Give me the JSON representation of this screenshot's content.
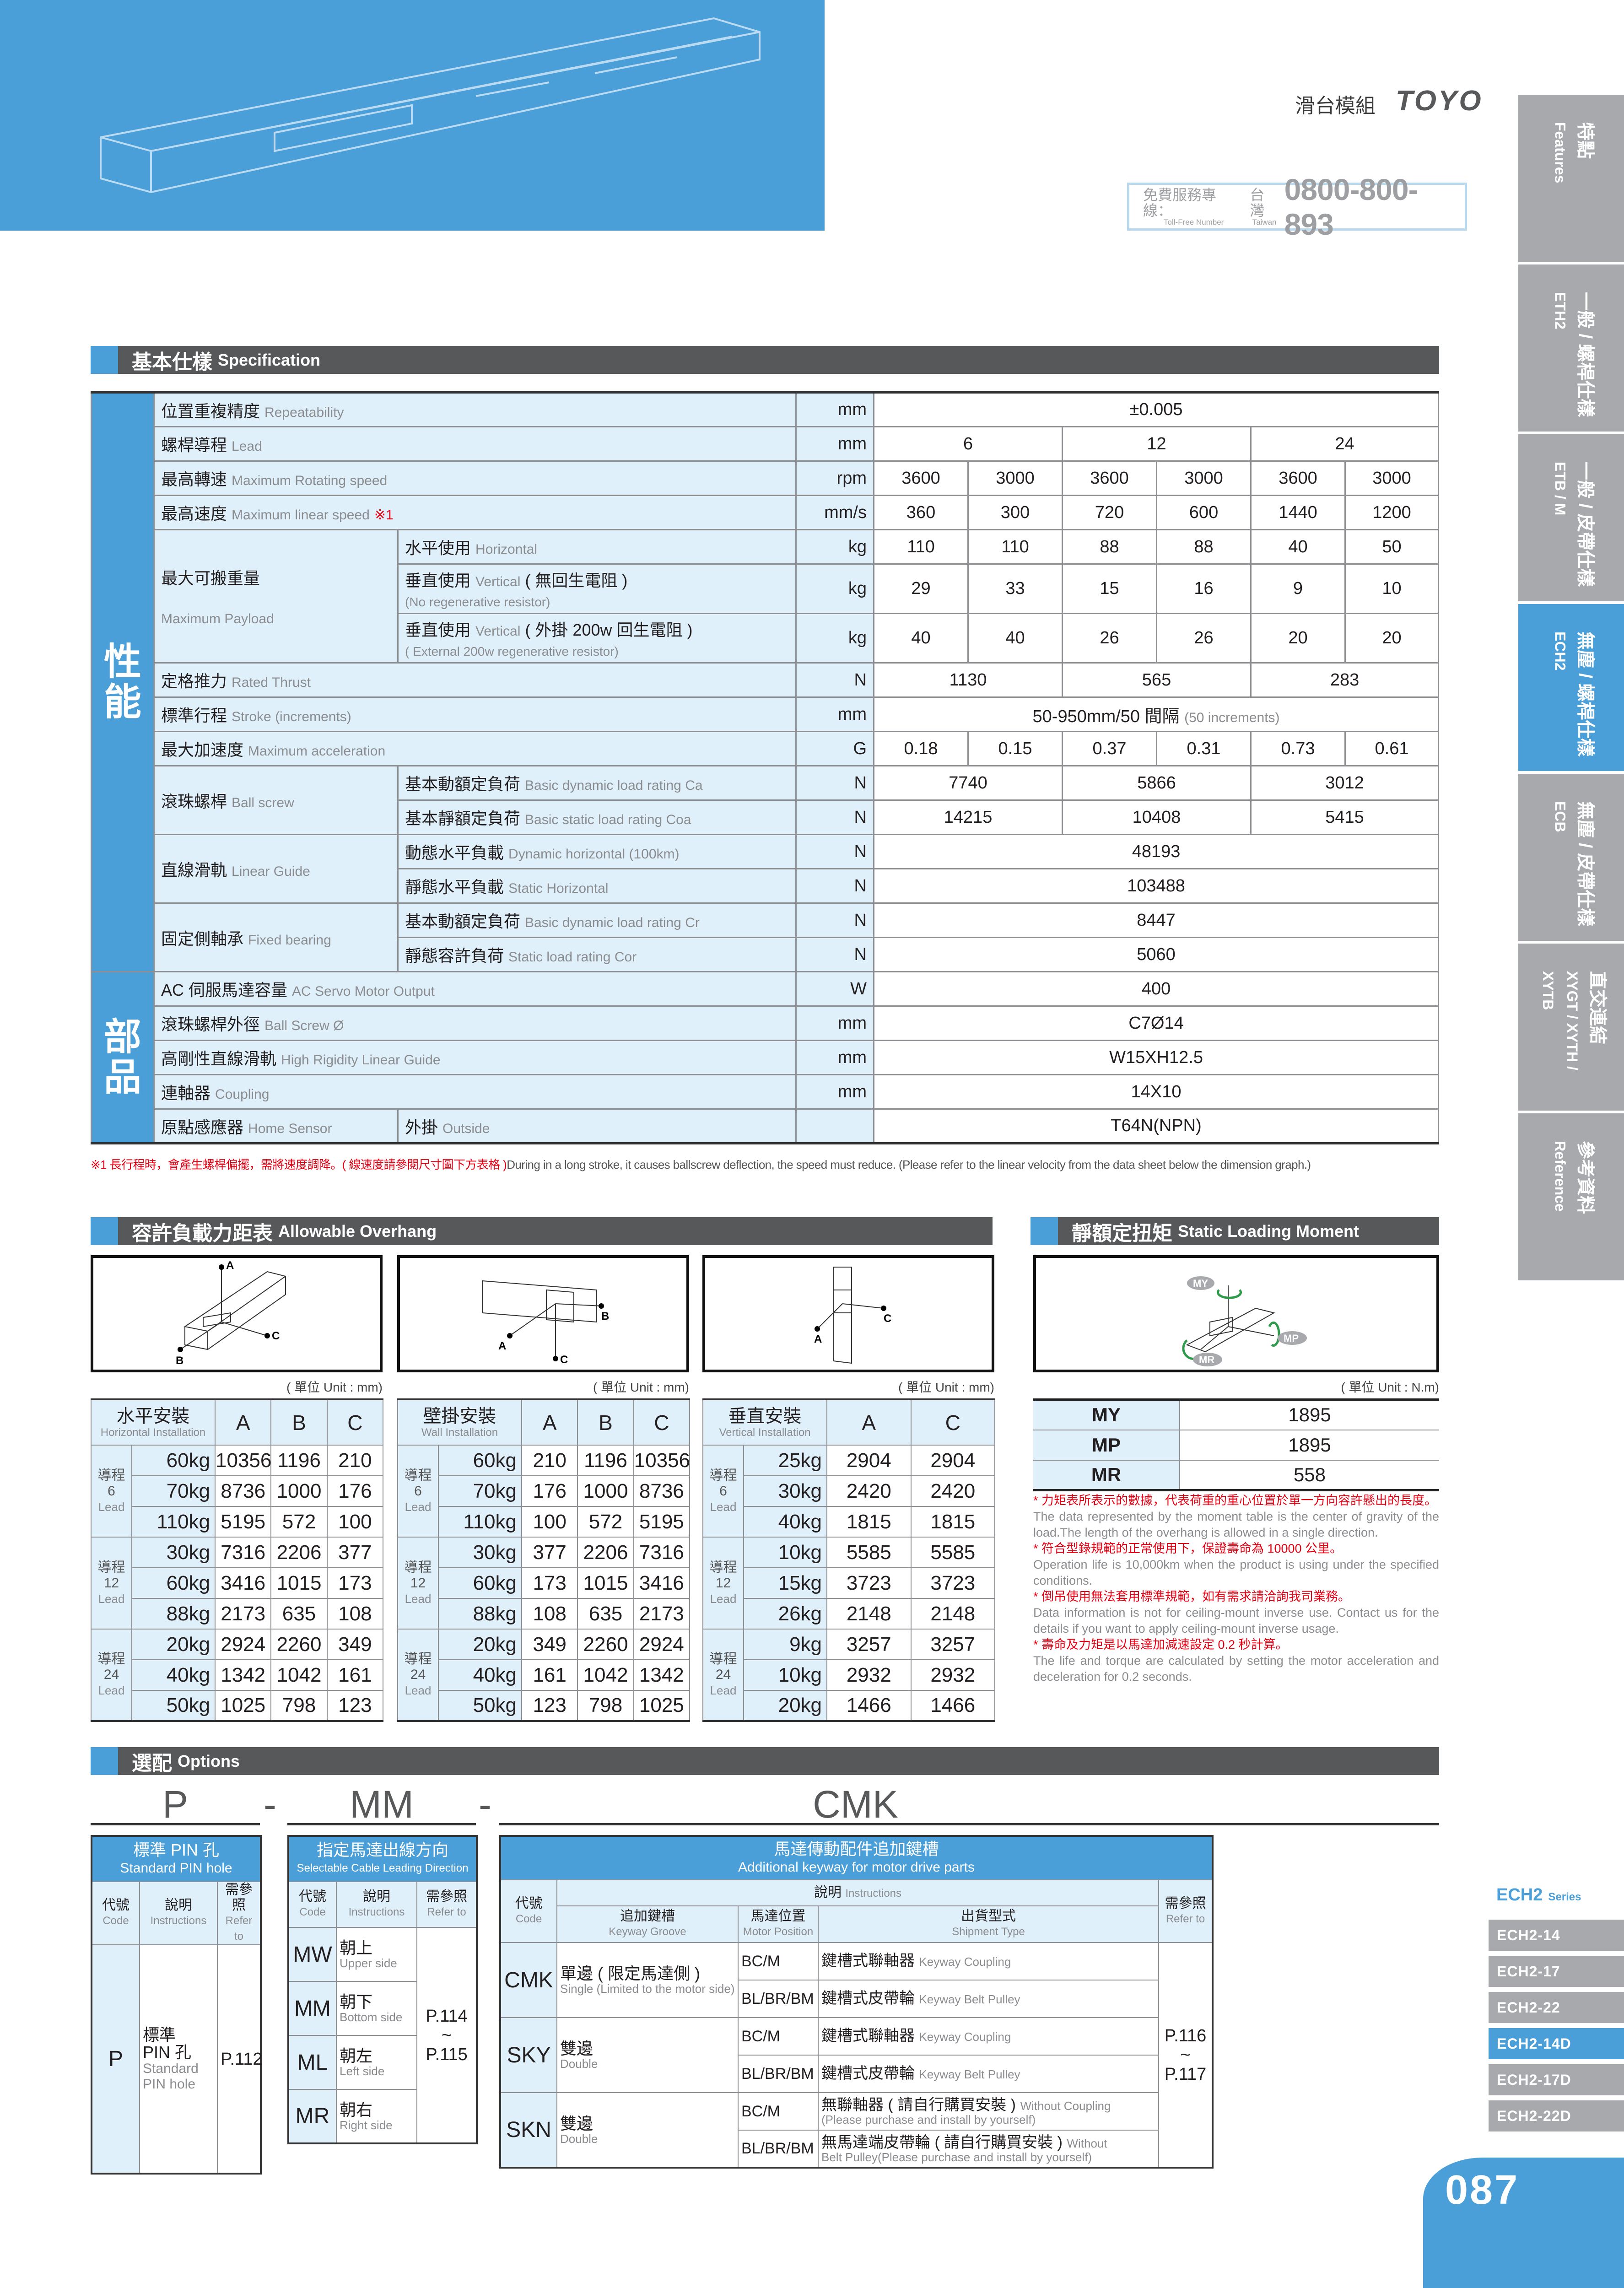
{
  "header": {
    "category": "滑台模組",
    "brand": "TOYO",
    "tollfree": {
      "label_zh": "免費服務專線：",
      "label_en": "Toll-Free Number",
      "region_zh": "台灣",
      "region_en": "Taiwan",
      "number": "0800-800-893"
    }
  },
  "side_tabs": [
    {
      "zh": "特點",
      "en": "Features",
      "active": false
    },
    {
      "zh": "一般 / 螺桿仕樣",
      "en": "ETH2",
      "active": false
    },
    {
      "zh": "一般 / 皮帶仕樣",
      "en": "ETB / M",
      "active": false
    },
    {
      "zh": "無塵 / 螺桿仕樣",
      "en": "ECH2",
      "active": true
    },
    {
      "zh": "無塵 / 皮帶仕樣",
      "en": "ECB",
      "active": false
    },
    {
      "zh": "直交連結",
      "en": "XYGT / XYTH / XYTB",
      "active": false
    },
    {
      "zh": "參考資料",
      "en": "Reference",
      "active": false
    }
  ],
  "spec": {
    "title_zh": "基本仕樣",
    "title_en": "Specification",
    "sections": [
      {
        "label": "性能",
        "items": [
          {
            "zh": "位置重複精度",
            "en": "Repeatability",
            "unit": "mm",
            "values": [
              "±0.005"
            ]
          },
          {
            "zh": "螺桿導程",
            "en": "Lead",
            "unit": "mm",
            "values": [
              "6",
              "12",
              "24"
            ]
          },
          {
            "zh": "最高轉速",
            "en": "Maximum Rotating speed",
            "unit": "rpm",
            "values": [
              "3600",
              "3000",
              "3600",
              "3000",
              "3600",
              "3000"
            ]
          },
          {
            "zh": "最高速度",
            "en": "Maximum linear speed",
            "note": "※1",
            "unit": "mm/s",
            "values": [
              "360",
              "300",
              "720",
              "600",
              "1440",
              "1200"
            ]
          },
          {
            "zh": "最大可搬重量",
            "en": "Maximum Payload",
            "sub": [
              {
                "zh": "水平使用",
                "en": "Horizontal",
                "unit": "kg",
                "values": [
                  "110",
                  "110",
                  "88",
                  "88",
                  "40",
                  "50"
                ]
              },
              {
                "zh": "垂直使用",
                "en": "Vertical",
                "zh2": "( 無回生電阻 )",
                "line2": "(No regenerative resistor)",
                "unit": "kg",
                "values": [
                  "29",
                  "33",
                  "15",
                  "16",
                  "9",
                  "10"
                ]
              },
              {
                "zh": "垂直使用",
                "en": "Vertical",
                "zh2": "( 外掛 200w 回生電阻 )",
                "line2": "( External 200w regenerative resistor)",
                "unit": "kg",
                "values": [
                  "40",
                  "40",
                  "26",
                  "26",
                  "20",
                  "20"
                ]
              }
            ]
          },
          {
            "zh": "定格推力",
            "en": "Rated Thrust",
            "unit": "N",
            "values": [
              "1130",
              "565",
              "283"
            ]
          },
          {
            "zh": "標準行程",
            "en": "Stroke (increments)",
            "unit": "mm",
            "values": [
              "50-950mm/50 間隔"
            ],
            "value_note": "(50 increments)"
          },
          {
            "zh": "最大加速度",
            "en": "Maximum acceleration",
            "unit": "G",
            "values": [
              "0.18",
              "0.15",
              "0.37",
              "0.31",
              "0.73",
              "0.61"
            ]
          },
          {
            "zh": "滾珠螺桿",
            "en": "Ball screw",
            "sub": [
              {
                "zh": "基本動額定負荷",
                "en": "Basic dynamic load rating Ca",
                "unit": "N",
                "values": [
                  "7740",
                  "5866",
                  "3012"
                ]
              },
              {
                "zh": "基本靜額定負荷",
                "en": "Basic static load rating Coa",
                "unit": "N",
                "values": [
                  "14215",
                  "10408",
                  "5415"
                ]
              }
            ]
          },
          {
            "zh": "直線滑軌",
            "en": "Linear Guide",
            "sub": [
              {
                "zh": "動態水平負載",
                "en": "Dynamic horizontal (100km)",
                "unit": "N",
                "values": [
                  "48193"
                ]
              },
              {
                "zh": "靜態水平負載",
                "en": "Static Horizontal",
                "unit": "N",
                "values": [
                  "103488"
                ]
              }
            ]
          },
          {
            "zh": "固定側軸承",
            "en": "Fixed bearing",
            "sub": [
              {
                "zh": "基本動額定負荷",
                "en": "Basic dynamic load rating Cr",
                "unit": "N",
                "values": [
                  "8447"
                ]
              },
              {
                "zh": "靜態容許負荷",
                "en": "Static load rating Cor",
                "unit": "N",
                "values": [
                  "5060"
                ]
              }
            ]
          }
        ]
      },
      {
        "label": "部品",
        "items": [
          {
            "zh": "AC 伺服馬達容量",
            "en": "AC Servo Motor Output",
            "unit": "W",
            "values": [
              "400"
            ]
          },
          {
            "zh": "滾珠螺桿外徑",
            "en": "Ball Screw Ø",
            "unit": "mm",
            "values": [
              "C7Ø14"
            ]
          },
          {
            "zh": "高剛性直線滑軌",
            "en": "High Rigidity Linear Guide",
            "unit": "mm",
            "values": [
              "W15XH12.5"
            ]
          },
          {
            "zh": "連軸器",
            "en": "Coupling",
            "unit": "mm",
            "values": [
              "14X10"
            ]
          },
          {
            "zh": "原點感應器",
            "en": "Home Sensor",
            "sub": [
              {
                "zh": "外掛",
                "en": "Outside",
                "unit": "",
                "values": [
                  "T64N(NPN)"
                ]
              }
            ]
          }
        ]
      }
    ],
    "footnote_zh": "※1 長行程時，會產生螺桿偏擺，需將速度調降。( 線速度請參閱尺寸圖下方表格 )",
    "footnote_en": "During in a long stroke, it causes ballscrew deflection, the speed must reduce. (Please refer to the linear velocity from the data sheet below the dimension graph.)"
  },
  "overhang": {
    "title_zh": "容許負載力距表",
    "title_en": "Allowable Overhang",
    "unit_label": "( 單位 Unit : mm)",
    "tables": [
      {
        "zh": "水平安裝",
        "en": "Horizontal Installation",
        "cols": [
          "A",
          "B",
          "C"
        ],
        "diagram_labels": [
          "A",
          "B",
          "C"
        ],
        "groups": [
          {
            "lead_zh": "導程",
            "lead": "6",
            "lead_en": "Lead",
            "rows": [
              {
                "load": "60kg",
                "values": [
                  "10356",
                  "1196",
                  "210"
                ]
              },
              {
                "load": "70kg",
                "values": [
                  "8736",
                  "1000",
                  "176"
                ]
              },
              {
                "load": "110kg",
                "values": [
                  "5195",
                  "572",
                  "100"
                ]
              }
            ]
          },
          {
            "lead_zh": "導程",
            "lead": "12",
            "lead_en": "Lead",
            "rows": [
              {
                "load": "30kg",
                "values": [
                  "7316",
                  "2206",
                  "377"
                ]
              },
              {
                "load": "60kg",
                "values": [
                  "3416",
                  "1015",
                  "173"
                ]
              },
              {
                "load": "88kg",
                "values": [
                  "2173",
                  "635",
                  "108"
                ]
              }
            ]
          },
          {
            "lead_zh": "導程",
            "lead": "24",
            "lead_en": "Lead",
            "rows": [
              {
                "load": "20kg",
                "values": [
                  "2924",
                  "2260",
                  "349"
                ]
              },
              {
                "load": "40kg",
                "values": [
                  "1342",
                  "1042",
                  "161"
                ]
              },
              {
                "load": "50kg",
                "values": [
                  "1025",
                  "798",
                  "123"
                ]
              }
            ]
          }
        ]
      },
      {
        "zh": "壁掛安裝",
        "en": "Wall Installation",
        "cols": [
          "A",
          "B",
          "C"
        ],
        "diagram_labels": [
          "A",
          "B",
          "C"
        ],
        "groups": [
          {
            "lead_zh": "導程",
            "lead": "6",
            "lead_en": "Lead",
            "rows": [
              {
                "load": "60kg",
                "values": [
                  "210",
                  "1196",
                  "10356"
                ]
              },
              {
                "load": "70kg",
                "values": [
                  "176",
                  "1000",
                  "8736"
                ]
              },
              {
                "load": "110kg",
                "values": [
                  "100",
                  "572",
                  "5195"
                ]
              }
            ]
          },
          {
            "lead_zh": "導程",
            "lead": "12",
            "lead_en": "Lead",
            "rows": [
              {
                "load": "30kg",
                "values": [
                  "377",
                  "2206",
                  "7316"
                ]
              },
              {
                "load": "60kg",
                "values": [
                  "173",
                  "1015",
                  "3416"
                ]
              },
              {
                "load": "88kg",
                "values": [
                  "108",
                  "635",
                  "2173"
                ]
              }
            ]
          },
          {
            "lead_zh": "導程",
            "lead": "24",
            "lead_en": "Lead",
            "rows": [
              {
                "load": "20kg",
                "values": [
                  "349",
                  "2260",
                  "2924"
                ]
              },
              {
                "load": "40kg",
                "values": [
                  "161",
                  "1042",
                  "1342"
                ]
              },
              {
                "load": "50kg",
                "values": [
                  "123",
                  "798",
                  "1025"
                ]
              }
            ]
          }
        ]
      },
      {
        "zh": "垂直安裝",
        "en": "Vertical Installation",
        "cols": [
          "A",
          "C"
        ],
        "diagram_labels": [
          "A",
          "C"
        ],
        "groups": [
          {
            "lead_zh": "導程",
            "lead": "6",
            "lead_en": "Lead",
            "rows": [
              {
                "load": "25kg",
                "values": [
                  "2904",
                  "2904"
                ]
              },
              {
                "load": "30kg",
                "values": [
                  "2420",
                  "2420"
                ]
              },
              {
                "load": "40kg",
                "values": [
                  "1815",
                  "1815"
                ]
              }
            ]
          },
          {
            "lead_zh": "導程",
            "lead": "12",
            "lead_en": "Lead",
            "rows": [
              {
                "load": "10kg",
                "values": [
                  "5585",
                  "5585"
                ]
              },
              {
                "load": "15kg",
                "values": [
                  "3723",
                  "3723"
                ]
              },
              {
                "load": "26kg",
                "values": [
                  "2148",
                  "2148"
                ]
              }
            ]
          },
          {
            "lead_zh": "導程",
            "lead": "24",
            "lead_en": "Lead",
            "rows": [
              {
                "load": "9kg",
                "values": [
                  "3257",
                  "3257"
                ]
              },
              {
                "load": "10kg",
                "values": [
                  "2932",
                  "2932"
                ]
              },
              {
                "load": "20kg",
                "values": [
                  "1466",
                  "1466"
                ]
              }
            ]
          }
        ]
      }
    ]
  },
  "moment": {
    "title_zh": "靜額定扭矩",
    "title_en": "Static Loading Moment",
    "unit_label": "( 單位 Unit : N.m)",
    "diagram_labels": [
      "MY",
      "MP",
      "MR"
    ],
    "rows": [
      {
        "k": "MY",
        "v": "1895"
      },
      {
        "k": "MP",
        "v": "1895"
      },
      {
        "k": "MR",
        "v": "558"
      }
    ],
    "notes": [
      {
        "zh": "* 力矩表所表示的數據，代表荷重的重心位置於單一方向容許懸出的長度。",
        "en": "The data represented by the moment table is the center of gravity of the load.The length of the overhang is allowed in a single direction."
      },
      {
        "zh": "* 符合型錄規範的正常使用下，保證壽命為 10000 公里。",
        "en": "Operation life is 10,000km when the product is using under the specified conditions."
      },
      {
        "zh": "* 倒吊使用無法套用標準規範，如有需求請洽詢我司業務。",
        "en": "Data information is not for ceiling-mount inverse use. Contact us for the details if you want to apply ceiling-mount inverse usage."
      },
      {
        "zh": "* 壽命及力矩是以馬達加減速設定 0.2 秒計算。",
        "en": "The life and torque are calculated by setting the motor acceleration and deceleration for 0.2 seconds."
      }
    ]
  },
  "options": {
    "title_zh": "選配",
    "title_en": "Options",
    "codes": [
      "P",
      "MM",
      "CMK"
    ],
    "separator": "-",
    "headers": {
      "code_zh": "代號",
      "code_en": "Code",
      "instr_zh": "說明",
      "instr_en": "Instructions",
      "ref_zh": "需參照",
      "ref_en": "Refer to"
    },
    "pin": {
      "title_zh": "標準 PIN 孔",
      "title_en": "Standard PIN hole",
      "rows": [
        {
          "code": "P",
          "zh": "標準 PIN 孔",
          "en": "Standard PIN hole"
        }
      ],
      "ref": "P.112"
    },
    "cable": {
      "title_zh": "指定馬達出線方向",
      "title_en": "Selectable Cable Leading Direction",
      "rows": [
        {
          "code": "MW",
          "zh": "朝上",
          "en": "Upper side"
        },
        {
          "code": "MM",
          "zh": "朝下",
          "en": "Bottom side"
        },
        {
          "code": "ML",
          "zh": "朝左",
          "en": "Left side"
        },
        {
          "code": "MR",
          "zh": "朝右",
          "en": "Right side"
        }
      ],
      "ref": [
        "P.114",
        "~",
        "P.115"
      ]
    },
    "keyway": {
      "title_zh": "馬達傳動配件追加鍵槽",
      "title_en": "Additional keyway for motor drive parts",
      "sub_headers": [
        {
          "zh": "追加鍵槽",
          "en": "Keyway Groove"
        },
        {
          "zh": "馬達位置",
          "en": "Motor Position"
        },
        {
          "zh": "出貨型式",
          "en": "Shipment Type"
        }
      ],
      "rows": [
        {
          "code": "CMK",
          "zh": "單邊 ( 限定馬達側 )",
          "en": "Single (Limited to the motor side)",
          "items": [
            {
              "pos": "BC/M",
              "zh": "鍵槽式聯軸器",
              "en": "Keyway Coupling"
            },
            {
              "pos": "BL/BR/BM",
              "zh": "鍵槽式皮帶輪",
              "en": "Keyway Belt Pulley"
            }
          ]
        },
        {
          "code": "SKY",
          "zh": "雙邊",
          "en": "Double",
          "items": [
            {
              "pos": "BC/M",
              "zh": "鍵槽式聯軸器",
              "en": "Keyway Coupling"
            },
            {
              "pos": "BL/BR/BM",
              "zh": "鍵槽式皮帶輪",
              "en": "Keyway Belt Pulley"
            }
          ]
        },
        {
          "code": "SKN",
          "zh": "雙邊",
          "en": "Double",
          "items": [
            {
              "pos": "BC/M",
              "zh": "無聯軸器 ( 請自行購買安裝 )",
              "en": "Without Coupling",
              "en2": "(Please purchase and install by yourself)"
            },
            {
              "pos": "BL/BR/BM",
              "zh": "無馬達端皮帶輪 ( 請自行購買安裝 )",
              "en": "Without",
              "en2": "Belt Pulley(Please purchase and install by yourself)"
            }
          ]
        }
      ],
      "ref": [
        "P.116",
        "~",
        "P.117"
      ]
    }
  },
  "series": {
    "name": "ECH2",
    "label": "Series",
    "items": [
      {
        "label": "ECH2-14",
        "active": false
      },
      {
        "label": "ECH2-17",
        "active": false
      },
      {
        "label": "ECH2-22",
        "active": false
      },
      {
        "label": "ECH2-14D",
        "active": true
      },
      {
        "label": "ECH2-17D",
        "active": false
      },
      {
        "label": "ECH2-22D",
        "active": false
      }
    ]
  },
  "page_number": "087",
  "colors": {
    "accent": "#4a9fd8",
    "cell": "#dff0fa",
    "bar": "#57585a",
    "tab": "#a7a9ac",
    "note": "#e60012"
  }
}
